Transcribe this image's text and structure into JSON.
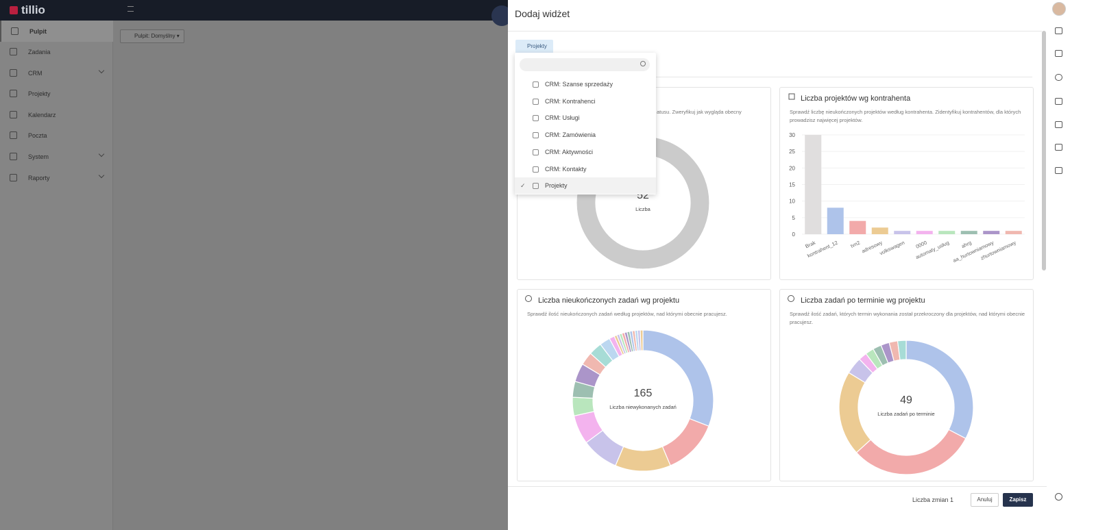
{
  "topbar": {
    "logo": "tillio"
  },
  "sidebar": {
    "items": [
      "Pulpit",
      "Zadania",
      "CRM",
      "Projekty",
      "Kalendarz",
      "Poczta",
      "System",
      "Raporty"
    ]
  },
  "toolbar": {
    "dashboard_button": "Pulpit: Domyślny"
  },
  "drawer": {
    "title": "Dodaj widżet",
    "filter_tag": "Projekty",
    "dropdown": {
      "options": [
        "CRM: Szanse sprzedaży",
        "CRM: Kontrahenci",
        "CRM: Usługi",
        "CRM: Zamówienia",
        "CRM: Aktywności",
        "CRM: Kontakty",
        "Projekty"
      ],
      "selected_index": 6
    },
    "footer": {
      "changes": "Liczba zmian 1",
      "cancel": "Anuluj",
      "save": "Zapisz"
    }
  },
  "chart_data": [
    {
      "type": "pie",
      "subtitle": "atusu. Zweryfikuj jak wygląda obecny",
      "total": 52,
      "total_label": "Liczba",
      "values": [
        52
      ],
      "colors": [
        "#cbcbcb"
      ]
    },
    {
      "type": "bar",
      "title": "Liczba projektów wg kontrahenta",
      "subtitle": "Sprawdź liczbę nieukończonych projektów według kontrahenta. Zidentyfikuj kontrahentów, dla których prowadzisz najwięcej projektów.",
      "categories": [
        "Brak",
        "kontrahent_12",
        "tvn2",
        "adresowy",
        "volkswagen",
        "0000",
        "automaty_usług",
        "ahrg",
        "aa_hurtowniamowy",
        "zhurtowniamowy"
      ],
      "values": [
        30,
        8,
        4,
        2,
        1,
        1,
        1,
        1,
        1,
        1
      ],
      "colors": [
        "#e0dede",
        "#aec3ea",
        "#f2aaaa",
        "#eccb93",
        "#c8c3ea",
        "#f3b3ee",
        "#b9e6bd",
        "#9dbfb1",
        "#ab95c9",
        "#f0b8b0"
      ],
      "ylim": [
        0,
        30
      ],
      "yticks": [
        0,
        5,
        10,
        15,
        20,
        25,
        30
      ],
      "grid": true
    },
    {
      "type": "pie",
      "title": "Liczba nieukończonych zadań wg projektu",
      "subtitle": "Sprawdź ilość nieukończonych zadań według projektów, nad którymi obecnie pracujesz.",
      "total": 165,
      "total_label": "Liczba niewykonanych zadań",
      "values": [
        51,
        21,
        21,
        14,
        11,
        7,
        6,
        7,
        5,
        5,
        4,
        2,
        1,
        1,
        1,
        1,
        1,
        1,
        1,
        1,
        1,
        1,
        1
      ],
      "colors": [
        "#aec3ea",
        "#f2aaaa",
        "#eccb93",
        "#c8c3ea",
        "#f3b3ee",
        "#b9e6bd",
        "#9dbfb1",
        "#ab95c9",
        "#f0b8b0",
        "#a7dcd6",
        "#bcd7f0",
        "#f3b3ee",
        "#eccb93",
        "#c8c3ea",
        "#b9e6bd",
        "#f2aaaa",
        "#ab95c9",
        "#9dbfb1",
        "#aec3ea",
        "#f0b8b0",
        "#bcd7f0",
        "#c8c3ea",
        "#eccb93"
      ]
    },
    {
      "type": "pie",
      "title": "Liczba zadań po terminie wg projektu",
      "subtitle": "Sprawdź ilość zadań, których termin wykonania został przekroczony dla projektów, nad którymi obecnie pracujesz.",
      "total": 49,
      "total_label": "Liczba zadań po terminie",
      "values": [
        16,
        15,
        10,
        2,
        1,
        1,
        1,
        1,
        1,
        1
      ],
      "colors": [
        "#aec3ea",
        "#f2aaaa",
        "#eccb93",
        "#c8c3ea",
        "#f3b3ee",
        "#b9e6bd",
        "#9dbfb1",
        "#ab95c9",
        "#f0b8b0",
        "#a7dcd6"
      ]
    }
  ]
}
